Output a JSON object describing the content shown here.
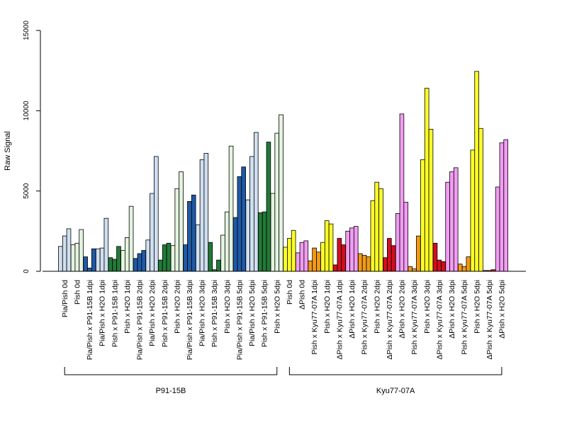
{
  "chart_data": {
    "type": "bar",
    "ylabel": "Raw Signal",
    "ylim": [
      0,
      15000
    ],
    "yticks": [
      0,
      5000,
      10000,
      15000
    ],
    "grid": false,
    "colors": {
      "light_blue": "#cfdff0",
      "dark_blue": "#1f5aa8",
      "light_green": "#e3f3df",
      "dark_green": "#227a36",
      "yellow": "#ffff26",
      "violet": "#f29cf2",
      "orange": "#f29a16",
      "red": "#d60d1e"
    },
    "categories": [
      {
        "label": "Pia/Pish 0d",
        "color": "light_blue",
        "values": [
          1550,
          2200,
          2650
        ]
      },
      {
        "label": "Pish 0d",
        "color": "light_green",
        "values": [
          1650,
          1750,
          2600
        ]
      },
      {
        "label": "Pia/Pish x P91-15B 1dpi",
        "color": "dark_blue",
        "values": [
          900,
          200,
          1400
        ]
      },
      {
        "label": "Pia/Pish x H2O 1dpi",
        "color": "light_blue",
        "values": [
          1400,
          1450,
          3300
        ]
      },
      {
        "label": "Pish x P91-15B 1dpi",
        "color": "dark_green",
        "values": [
          850,
          750,
          1550
        ]
      },
      {
        "label": "Pish x H2O 1dpi",
        "color": "light_green",
        "values": [
          1300,
          2100,
          4050
        ]
      },
      {
        "label": "Pia/Pish x P91-15B 2dpi",
        "color": "dark_blue",
        "values": [
          800,
          1100,
          1300
        ]
      },
      {
        "label": "Pia/Pish x H2O 2dpi",
        "color": "light_blue",
        "values": [
          1950,
          4850,
          7150
        ]
      },
      {
        "label": "Pish x P91-15B 2dpi",
        "color": "dark_green",
        "values": [
          700,
          1650,
          1750
        ]
      },
      {
        "label": "Pish x H2O 2dpi",
        "color": "light_green",
        "values": [
          1600,
          5150,
          6200
        ]
      },
      {
        "label": "Pia/Pish x P91-15B 3dpi",
        "color": "dark_blue",
        "values": [
          1650,
          4350,
          4750
        ]
      },
      {
        "label": "Pia/Pish x H2O 3dpi",
        "color": "light_blue",
        "values": [
          2900,
          6950,
          7350
        ]
      },
      {
        "label": "Pish x P91-15B 3dpi",
        "color": "dark_green",
        "values": [
          1800,
          100,
          700
        ]
      },
      {
        "label": "Pish x H2O 3dpi",
        "color": "light_green",
        "values": [
          2250,
          3700,
          7800
        ]
      },
      {
        "label": "Pia/Pish x P91-15B 5dpi",
        "color": "dark_blue",
        "values": [
          3350,
          5900,
          6500
        ]
      },
      {
        "label": "Pia/Pish x H2O 5dpi",
        "color": "light_blue",
        "values": [
          4450,
          7150,
          8650
        ]
      },
      {
        "label": "Pish x P91-15B 5dpi",
        "color": "dark_green",
        "values": [
          3650,
          3700,
          8050
        ]
      },
      {
        "label": "Pish x H2O 5dpi",
        "color": "light_green",
        "values": [
          4850,
          8600,
          9750
        ]
      },
      {
        "label": "Pish 0d",
        "color": "yellow",
        "values": [
          1500,
          2050,
          2550
        ]
      },
      {
        "label": "ΔPish 0d",
        "color": "violet",
        "values": [
          1150,
          1800,
          1900
        ]
      },
      {
        "label": "Pish x Kyu77-07A 1dpi",
        "color": "orange",
        "values": [
          650,
          1450,
          1200
        ]
      },
      {
        "label": "Pish x H2O 1dpi",
        "color": "yellow",
        "values": [
          1800,
          3150,
          2950
        ]
      },
      {
        "label": "ΔPish x Kyu77-07A 1dpi",
        "color": "red",
        "values": [
          400,
          2050,
          1650
        ]
      },
      {
        "label": "ΔPish x H2O 1dpi",
        "color": "violet",
        "values": [
          2500,
          2700,
          2800
        ]
      },
      {
        "label": "Pish x Kyu77-07A 2dpi",
        "color": "orange",
        "values": [
          1100,
          1000,
          900
        ]
      },
      {
        "label": "Pish x H2O 2dpi",
        "color": "yellow",
        "values": [
          4400,
          5550,
          5150
        ]
      },
      {
        "label": "ΔPish x Kyu77-07A 2dpi",
        "color": "red",
        "values": [
          850,
          2050,
          1600
        ]
      },
      {
        "label": "ΔPish x H2O 2dpi",
        "color": "violet",
        "values": [
          3600,
          9800,
          4300
        ]
      },
      {
        "label": "Pish x Kyu77-07A 3dpi",
        "color": "orange",
        "values": [
          300,
          150,
          2200
        ]
      },
      {
        "label": "Pish x H2O 3dpi",
        "color": "yellow",
        "values": [
          6950,
          11400,
          8850
        ]
      },
      {
        "label": "ΔPish x Kyu77-07A 3dpi",
        "color": "red",
        "values": [
          1750,
          700,
          600
        ]
      },
      {
        "label": "ΔPish x H2O 3dpi",
        "color": "violet",
        "values": [
          5550,
          6200,
          6450
        ]
      },
      {
        "label": "Pish x Kyu77-07A 5dpi",
        "color": "orange",
        "values": [
          450,
          300,
          900
        ]
      },
      {
        "label": "Pish x H2O 5dpi",
        "color": "yellow",
        "values": [
          7550,
          12450,
          8900
        ]
      },
      {
        "label": "ΔPish x Kyu77-07A 5dpi",
        "color": "red",
        "values": [
          50,
          50,
          100
        ]
      },
      {
        "label": "ΔPish x H2O 5dpi",
        "color": "violet",
        "values": [
          5250,
          8000,
          8200
        ]
      }
    ],
    "groups": [
      {
        "label": "P91-15B",
        "first": 0,
        "last": 17
      },
      {
        "label": "Kyu77-07A",
        "first": 18,
        "last": 35
      }
    ]
  }
}
